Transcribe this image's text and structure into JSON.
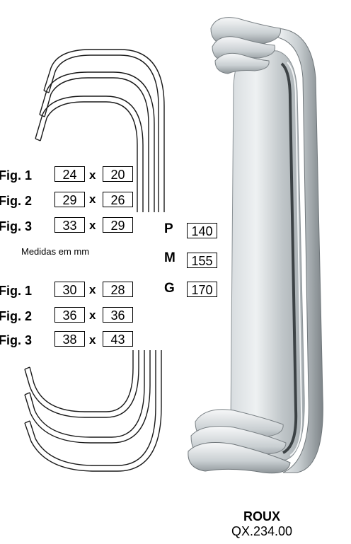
{
  "colors": {
    "ink": "#000000",
    "steel_light": "#e9ecee",
    "steel_mid": "#b4babd",
    "steel_dark": "#4a4f52"
  },
  "top_table": {
    "rows": [
      {
        "label": "Fig. 1",
        "a": "24",
        "x": "x",
        "b": "20"
      },
      {
        "label": "Fig. 2",
        "a": "29",
        "x": "x",
        "b": "26"
      },
      {
        "label": "Fig. 3",
        "a": "33",
        "x": "x",
        "b": "29"
      }
    ]
  },
  "units_note": "Medidas em mm",
  "bottom_table": {
    "rows": [
      {
        "label": "Fig. 1",
        "a": "30",
        "x": "x",
        "b": "28"
      },
      {
        "label": "Fig. 2",
        "a": "36",
        "x": "x",
        "b": "36"
      },
      {
        "label": "Fig. 3",
        "a": "38",
        "x": "x",
        "b": "43"
      }
    ]
  },
  "sizes": [
    {
      "label": "P",
      "value": "140"
    },
    {
      "label": "M",
      "value": "155"
    },
    {
      "label": "G",
      "value": "170"
    }
  ],
  "product": {
    "name": "ROUX",
    "code": "QX.234.00"
  },
  "icons": {
    "retractor": "roux-retractor-photo",
    "blade_outline": "blade-outline-drawing"
  }
}
